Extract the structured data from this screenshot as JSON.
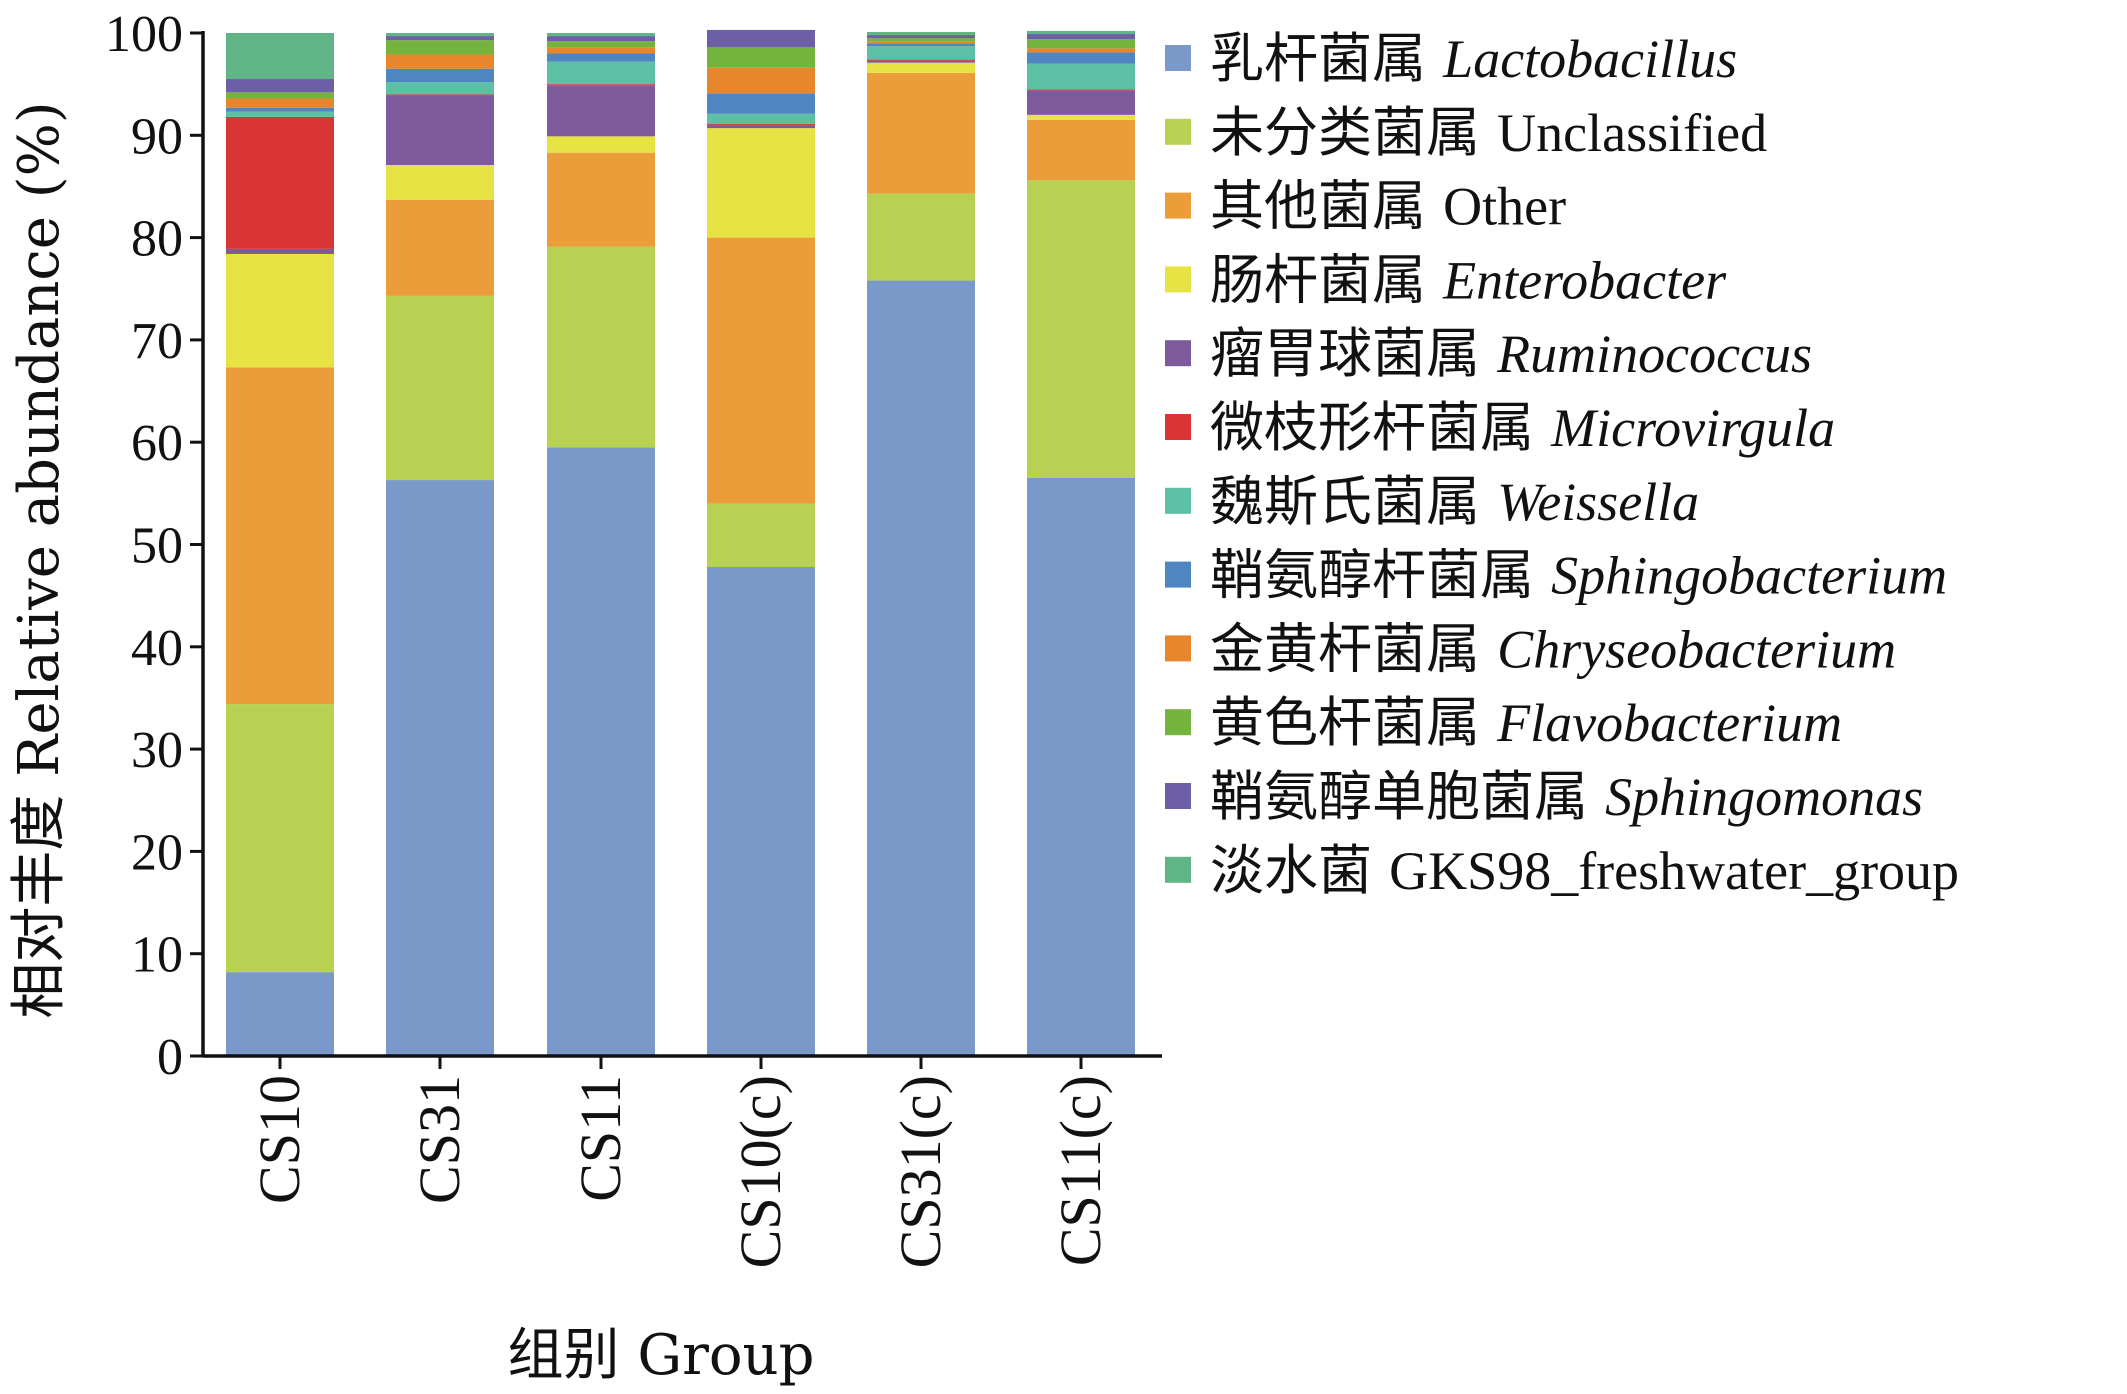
{
  "chart_data": {
    "type": "bar",
    "stacked": true,
    "ylabel": "相对丰度 Relative abundance (%)",
    "xlabel": "组别 Group",
    "ylim": [
      0,
      100
    ],
    "yticks": [
      0,
      10,
      20,
      30,
      40,
      50,
      60,
      70,
      80,
      90,
      100
    ],
    "categories": [
      "CS10",
      "CS31",
      "CS11",
      "CS10(c)",
      "CS31(c)",
      "CS11(c)"
    ],
    "legend_position": "right",
    "series": [
      {
        "name": "乳杆菌属 Lactobacillus",
        "name_cn": "乳杆菌属",
        "name_latin": "Lactobacillus",
        "italic": true,
        "color": "#7b99c8",
        "values": [
          8.2,
          56.3,
          59.5,
          47.8,
          75.8,
          56.5
        ]
      },
      {
        "name": "未分类菌属 Unclassified",
        "name_cn": "未分类菌属",
        "name_latin": "Unclassified",
        "italic": false,
        "color": "#b8d153",
        "values": [
          26.2,
          18.0,
          19.6,
          6.2,
          8.5,
          29.1
        ]
      },
      {
        "name": "其他菌属 Other",
        "name_cn": "其他菌属",
        "name_latin": "Other",
        "italic": false,
        "color": "#eb9d3a",
        "values": [
          32.9,
          9.4,
          9.2,
          26.0,
          11.8,
          5.9
        ]
      },
      {
        "name": "肠杆菌属 Enterobacter",
        "name_cn": "肠杆菌属",
        "name_latin": "Enterobacter",
        "italic": true,
        "color": "#e8e345",
        "values": [
          11.1,
          3.4,
          1.6,
          10.7,
          1.0,
          0.5
        ]
      },
      {
        "name": "瘤胃球菌属 Ruminococcus",
        "name_cn": "瘤胃球菌属",
        "name_latin": "Ruminococcus",
        "italic": true,
        "color": "#7e599c",
        "values": [
          0.5,
          6.8,
          5.0,
          0.3,
          0.2,
          2.4
        ]
      },
      {
        "name": "微枝形杆菌属 Microvirgula",
        "name_cn": "微枝形杆菌属",
        "name_latin": "Microvirgula",
        "italic": true,
        "color": "#d93535",
        "values": [
          12.9,
          0.1,
          0.1,
          0.1,
          0.1,
          0.1
        ]
      },
      {
        "name": "魏斯氏菌属 Weissella",
        "name_cn": "魏斯氏菌属",
        "name_latin": "Weissella",
        "italic": true,
        "color": "#5dbfa3",
        "values": [
          0.5,
          1.2,
          2.2,
          1.0,
          1.3,
          2.5
        ]
      },
      {
        "name": "鞘氨醇杆菌属 Sphingobacterium",
        "name_cn": "鞘氨醇杆菌属",
        "name_latin": "Sphingobacterium",
        "italic": true,
        "color": "#4f86c2",
        "values": [
          0.4,
          1.3,
          0.8,
          2.0,
          0.3,
          1.1
        ]
      },
      {
        "name": "金黄杆菌属 Chryseobacterium",
        "name_cn": "金黄杆菌属",
        "name_latin": "Chryseobacterium",
        "italic": true,
        "color": "#e8862e",
        "values": [
          0.9,
          1.4,
          0.6,
          2.5,
          0.2,
          0.4
        ]
      },
      {
        "name": "黄色杆菌属 Flavobacterium",
        "name_cn": "黄色杆菌属",
        "name_latin": "Flavobacterium",
        "italic": true,
        "color": "#73b33e",
        "values": [
          0.6,
          1.4,
          0.6,
          2.0,
          0.3,
          0.9
        ]
      },
      {
        "name": "鞘氨醇单胞菌属 Sphingomonas",
        "name_cn": "鞘氨醇单胞菌属",
        "name_latin": "Sphingomonas",
        "italic": true,
        "color": "#6c5fa7",
        "values": [
          1.3,
          0.4,
          0.5,
          1.7,
          0.3,
          0.5
        ]
      },
      {
        "name": "淡水菌 GKS98_freshwater_group",
        "name_cn": "淡水菌",
        "name_latin": "GKS98_freshwater_group",
        "italic": false,
        "color": "#5fb585",
        "values": [
          4.5,
          0.3,
          0.3,
          0.0,
          0.3,
          0.3
        ]
      }
    ]
  }
}
